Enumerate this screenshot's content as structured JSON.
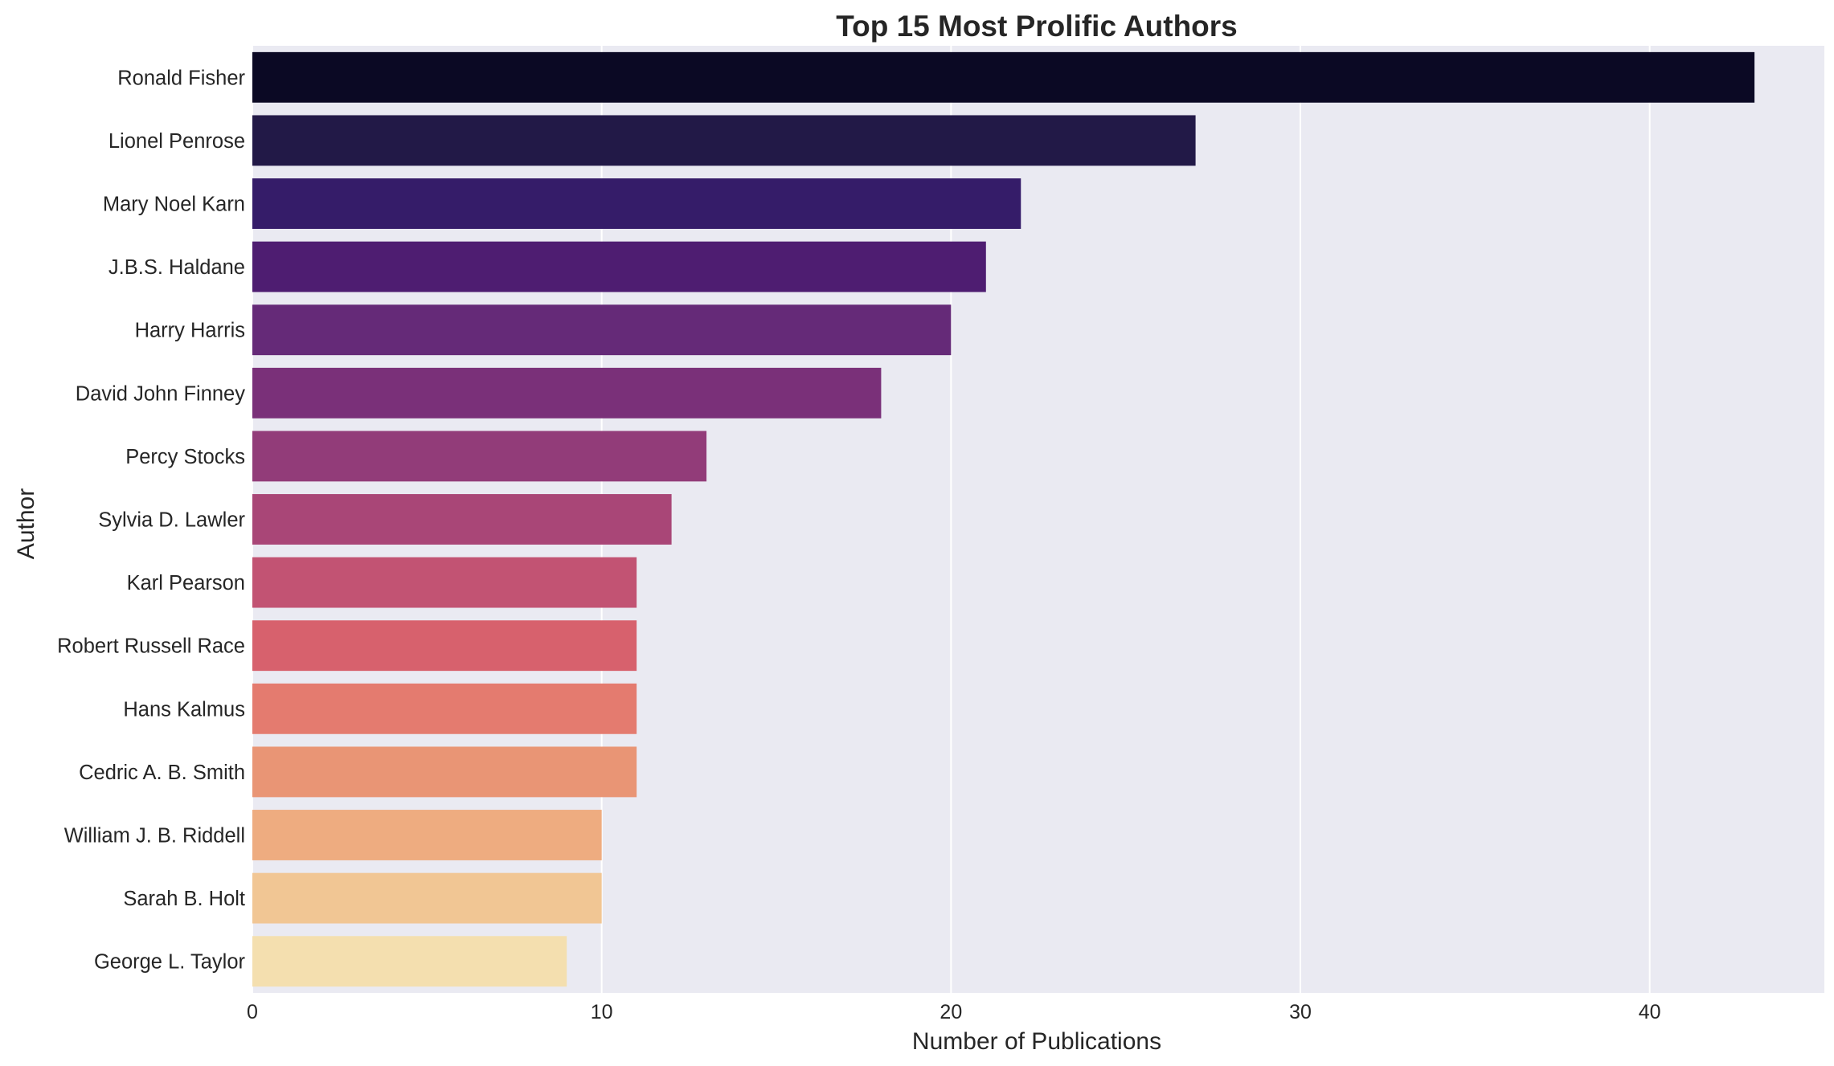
{
  "chart_data": {
    "type": "bar",
    "orientation": "horizontal",
    "title": "Top 15 Most Prolific Authors",
    "xlabel": "Number of Publications",
    "ylabel": "Author",
    "xlim": [
      0,
      45
    ],
    "xticks": [
      0,
      10,
      20,
      30,
      40
    ],
    "grid": true,
    "legend": "none",
    "background": "#eaeaf2",
    "categories": [
      "Ronald Fisher",
      "Lionel Penrose",
      "Mary Noel Karn",
      "J.B.S. Haldane",
      "Harry Harris",
      "David John Finney",
      "Percy Stocks",
      "Sylvia D. Lawler",
      "Karl Pearson",
      "Robert Russell Race",
      "Hans Kalmus",
      "Cedric A. B. Smith",
      "William J. B. Riddell",
      "Sarah B. Holt",
      "George L. Taylor"
    ],
    "values": [
      43,
      27,
      22,
      21,
      20,
      18,
      13,
      12,
      11,
      11,
      11,
      11,
      10,
      10,
      9
    ],
    "colors": [
      "#0b0924",
      "#221947",
      "#351c69",
      "#4e1d71",
      "#652a78",
      "#7a3079",
      "#923c79",
      "#a94677",
      "#c25373",
      "#d7616d",
      "#e47b6f",
      "#e99575",
      "#eeac80",
      "#f1c694",
      "#f4dfaf"
    ]
  }
}
